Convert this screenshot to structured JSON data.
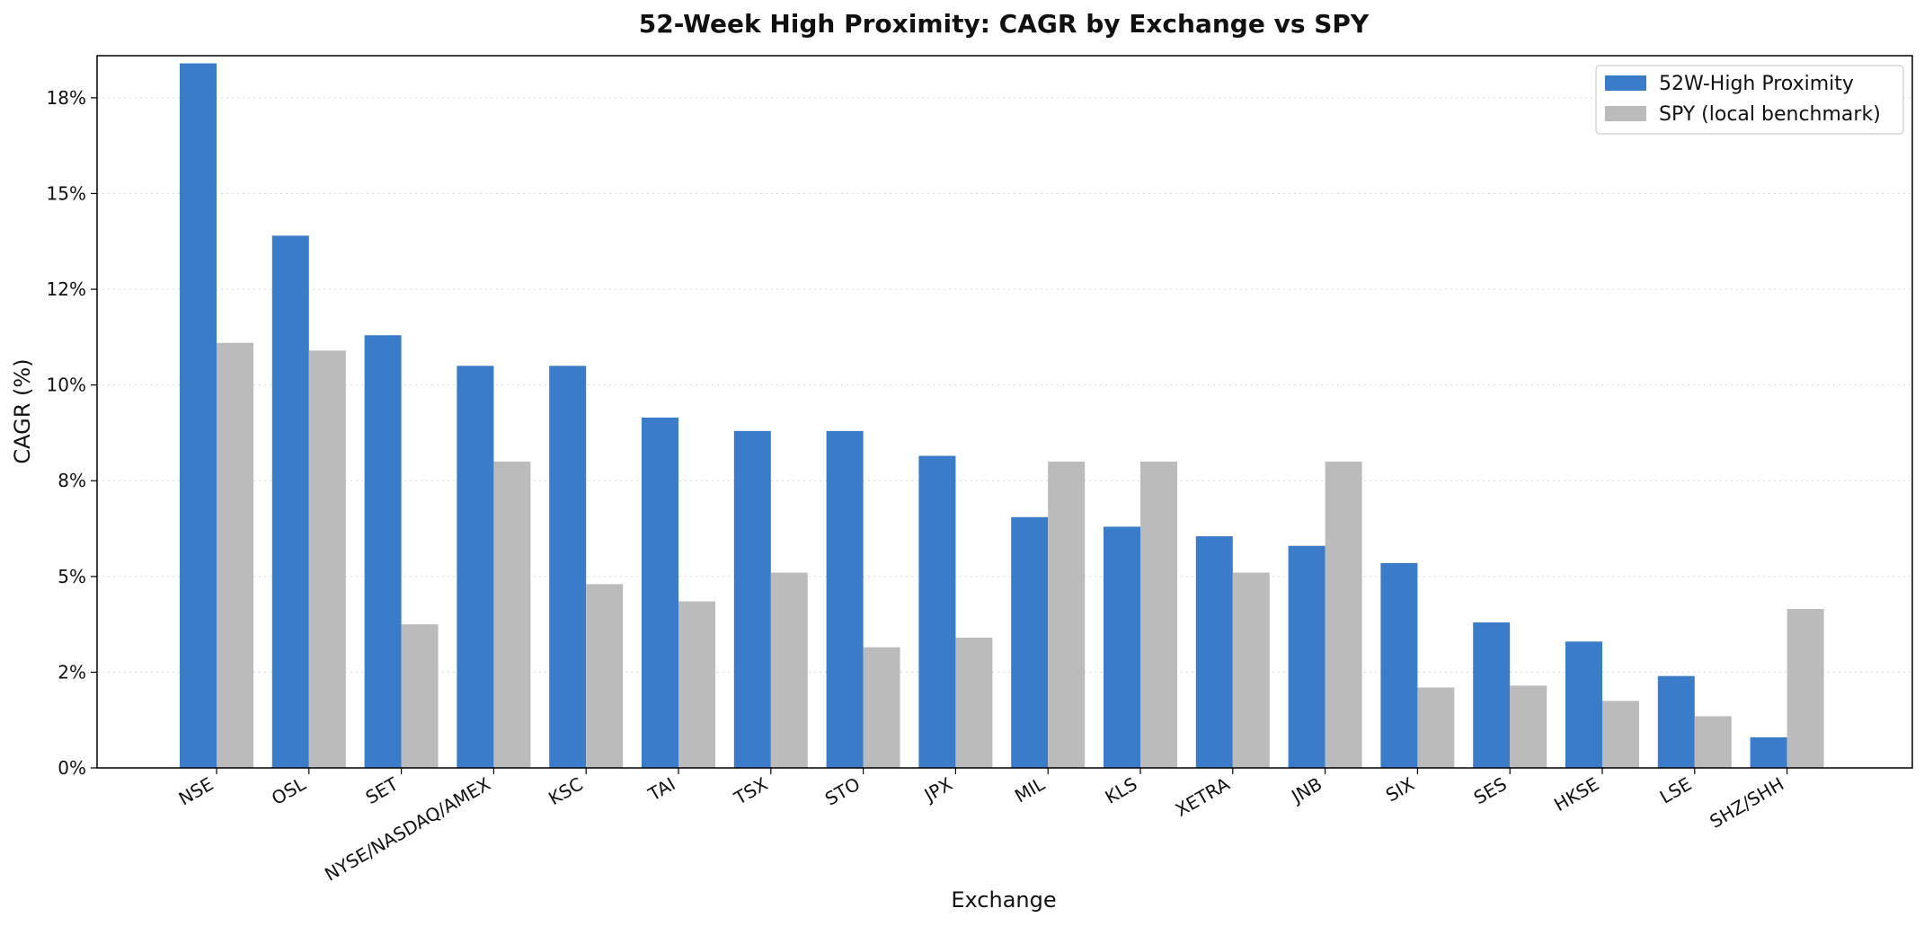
{
  "chart_data": {
    "type": "bar",
    "title": "52-Week High Proximity: CAGR by Exchange vs SPY",
    "xlabel": "Exchange",
    "ylabel": "CAGR (%)",
    "ylim": [
      0,
      18.6
    ],
    "yticks": [
      0,
      2.5,
      5,
      7.5,
      10,
      12.5,
      15,
      17.5
    ],
    "ytick_labels": [
      "0%",
      "2%",
      "5%",
      "8%",
      "10%",
      "12%",
      "15%",
      "18%"
    ],
    "grid": "y, dotted",
    "legend_position": "top-right",
    "categories": [
      "NSE",
      "OSL",
      "SET",
      "NYSE/NASDAQ/AMEX",
      "KSC",
      "TAI",
      "TSX",
      "STO",
      "JPX",
      "MIL",
      "KLS",
      "XETRA",
      "JNB",
      "SIX",
      "SES",
      "HKSE",
      "LSE",
      "SHZ/SHH"
    ],
    "series": [
      {
        "name": "52W-High Proximity",
        "color": "#3a7cc9",
        "values": [
          18.4,
          13.9,
          11.3,
          10.5,
          10.5,
          9.15,
          8.8,
          8.8,
          8.15,
          6.55,
          6.3,
          6.05,
          5.8,
          5.35,
          3.8,
          3.3,
          2.4,
          0.8
        ]
      },
      {
        "name": "SPY (local benchmark)",
        "color": "#bbbbbb",
        "values": [
          11.1,
          10.9,
          3.75,
          8.0,
          4.8,
          4.35,
          5.1,
          3.15,
          3.4,
          8.0,
          8.0,
          5.1,
          8.0,
          2.1,
          2.15,
          1.75,
          1.35,
          4.15
        ]
      }
    ]
  }
}
